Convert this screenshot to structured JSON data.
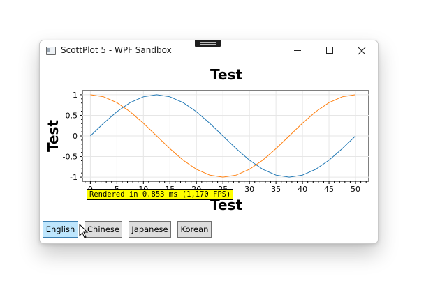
{
  "window": {
    "title": "ScottPlot 5 - WPF Sandbox",
    "icon": "app-window-icon"
  },
  "caption_buttons": [
    "minimize-icon",
    "maximize-icon",
    "close-icon"
  ],
  "plot": {
    "render_label": "Rendered in 0.853 ms (1,170 FPS)",
    "chart_data": {
      "type": "line",
      "title": "Test",
      "xlabel": "Test",
      "ylabel": "Test",
      "xlim": [
        -1.5,
        52.5
      ],
      "ylim": [
        -1.1,
        1.1
      ],
      "x_ticks": [
        0,
        5,
        10,
        15,
        20,
        25,
        30,
        35,
        40,
        45,
        50
      ],
      "x_tick_labels": [
        "0",
        "5",
        "10",
        "15",
        "20",
        "25",
        "30",
        "35",
        "40",
        "45",
        "50"
      ],
      "y_ticks": [
        1,
        0.5,
        0,
        -0.5,
        -1
      ],
      "y_tick_labels": [
        "1",
        "0.5",
        "0",
        "-0.5",
        "-1"
      ],
      "grid": true,
      "series": [
        {
          "color": "#1f77b4",
          "x": [
            0,
            2.5,
            5,
            7.5,
            10,
            12.5,
            15,
            17.5,
            20,
            22.5,
            25,
            27.5,
            30,
            32.5,
            35,
            37.5,
            40,
            42.5,
            45,
            47.5,
            50
          ],
          "values": [
            0,
            0.309,
            0.588,
            0.809,
            0.951,
            1,
            0.951,
            0.809,
            0.588,
            0.309,
            0,
            -0.309,
            -0.588,
            -0.809,
            -0.951,
            -1,
            -0.951,
            -0.809,
            -0.588,
            -0.309,
            0
          ]
        },
        {
          "color": "#ff7f0e",
          "x": [
            0,
            2.5,
            5,
            7.5,
            10,
            12.5,
            15,
            17.5,
            20,
            22.5,
            25,
            27.5,
            30,
            32.5,
            35,
            37.5,
            40,
            42.5,
            45,
            47.5,
            50
          ],
          "values": [
            1,
            0.951,
            0.809,
            0.588,
            0.309,
            0,
            -0.309,
            -0.588,
            -0.809,
            -0.951,
            -1,
            -0.951,
            -0.809,
            -0.588,
            -0.309,
            0,
            0.309,
            0.588,
            0.809,
            0.951,
            1
          ]
        }
      ]
    }
  },
  "buttons": [
    {
      "label": "English",
      "state": "hover"
    },
    {
      "label": "Chinese",
      "state": "normal"
    },
    {
      "label": "Japanese",
      "state": "normal"
    },
    {
      "label": "Korean",
      "state": "normal"
    }
  ]
}
